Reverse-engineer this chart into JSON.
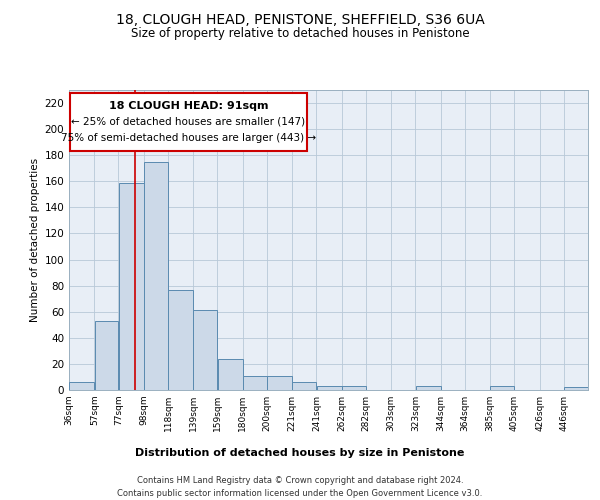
{
  "title1": "18, CLOUGH HEAD, PENISTONE, SHEFFIELD, S36 6UA",
  "title2": "Size of property relative to detached houses in Penistone",
  "xlabel": "Distribution of detached houses by size in Penistone",
  "ylabel": "Number of detached properties",
  "bar_edges": [
    36,
    57,
    77,
    98,
    118,
    139,
    159,
    180,
    200,
    221,
    241,
    262,
    282,
    303,
    323,
    344,
    364,
    385,
    405,
    426,
    446
  ],
  "bar_heights": [
    6,
    53,
    159,
    175,
    77,
    61,
    24,
    11,
    11,
    6,
    3,
    3,
    0,
    0,
    3,
    0,
    0,
    3,
    0,
    0,
    2
  ],
  "bar_color": "#ccd9e8",
  "bar_edge_color": "#5a8ab0",
  "bar_edge_width": 0.7,
  "red_line_x": 91,
  "red_line_color": "#cc0000",
  "ylim": [
    0,
    230
  ],
  "yticks": [
    0,
    20,
    40,
    60,
    80,
    100,
    120,
    140,
    160,
    180,
    200,
    220
  ],
  "annotation_title": "18 CLOUGH HEAD: 91sqm",
  "annotation_line1": "← 25% of detached houses are smaller (147)",
  "annotation_line2": "75% of semi-detached houses are larger (443) →",
  "annotation_box_facecolor": "#ffffff",
  "annotation_box_edgecolor": "#cc0000",
  "footnote1": "Contains HM Land Registry data © Crown copyright and database right 2024.",
  "footnote2": "Contains public sector information licensed under the Open Government Licence v3.0.",
  "bg_color": "#ffffff",
  "plot_bg_color": "#e8eef6",
  "grid_color": "#b8c8d8"
}
